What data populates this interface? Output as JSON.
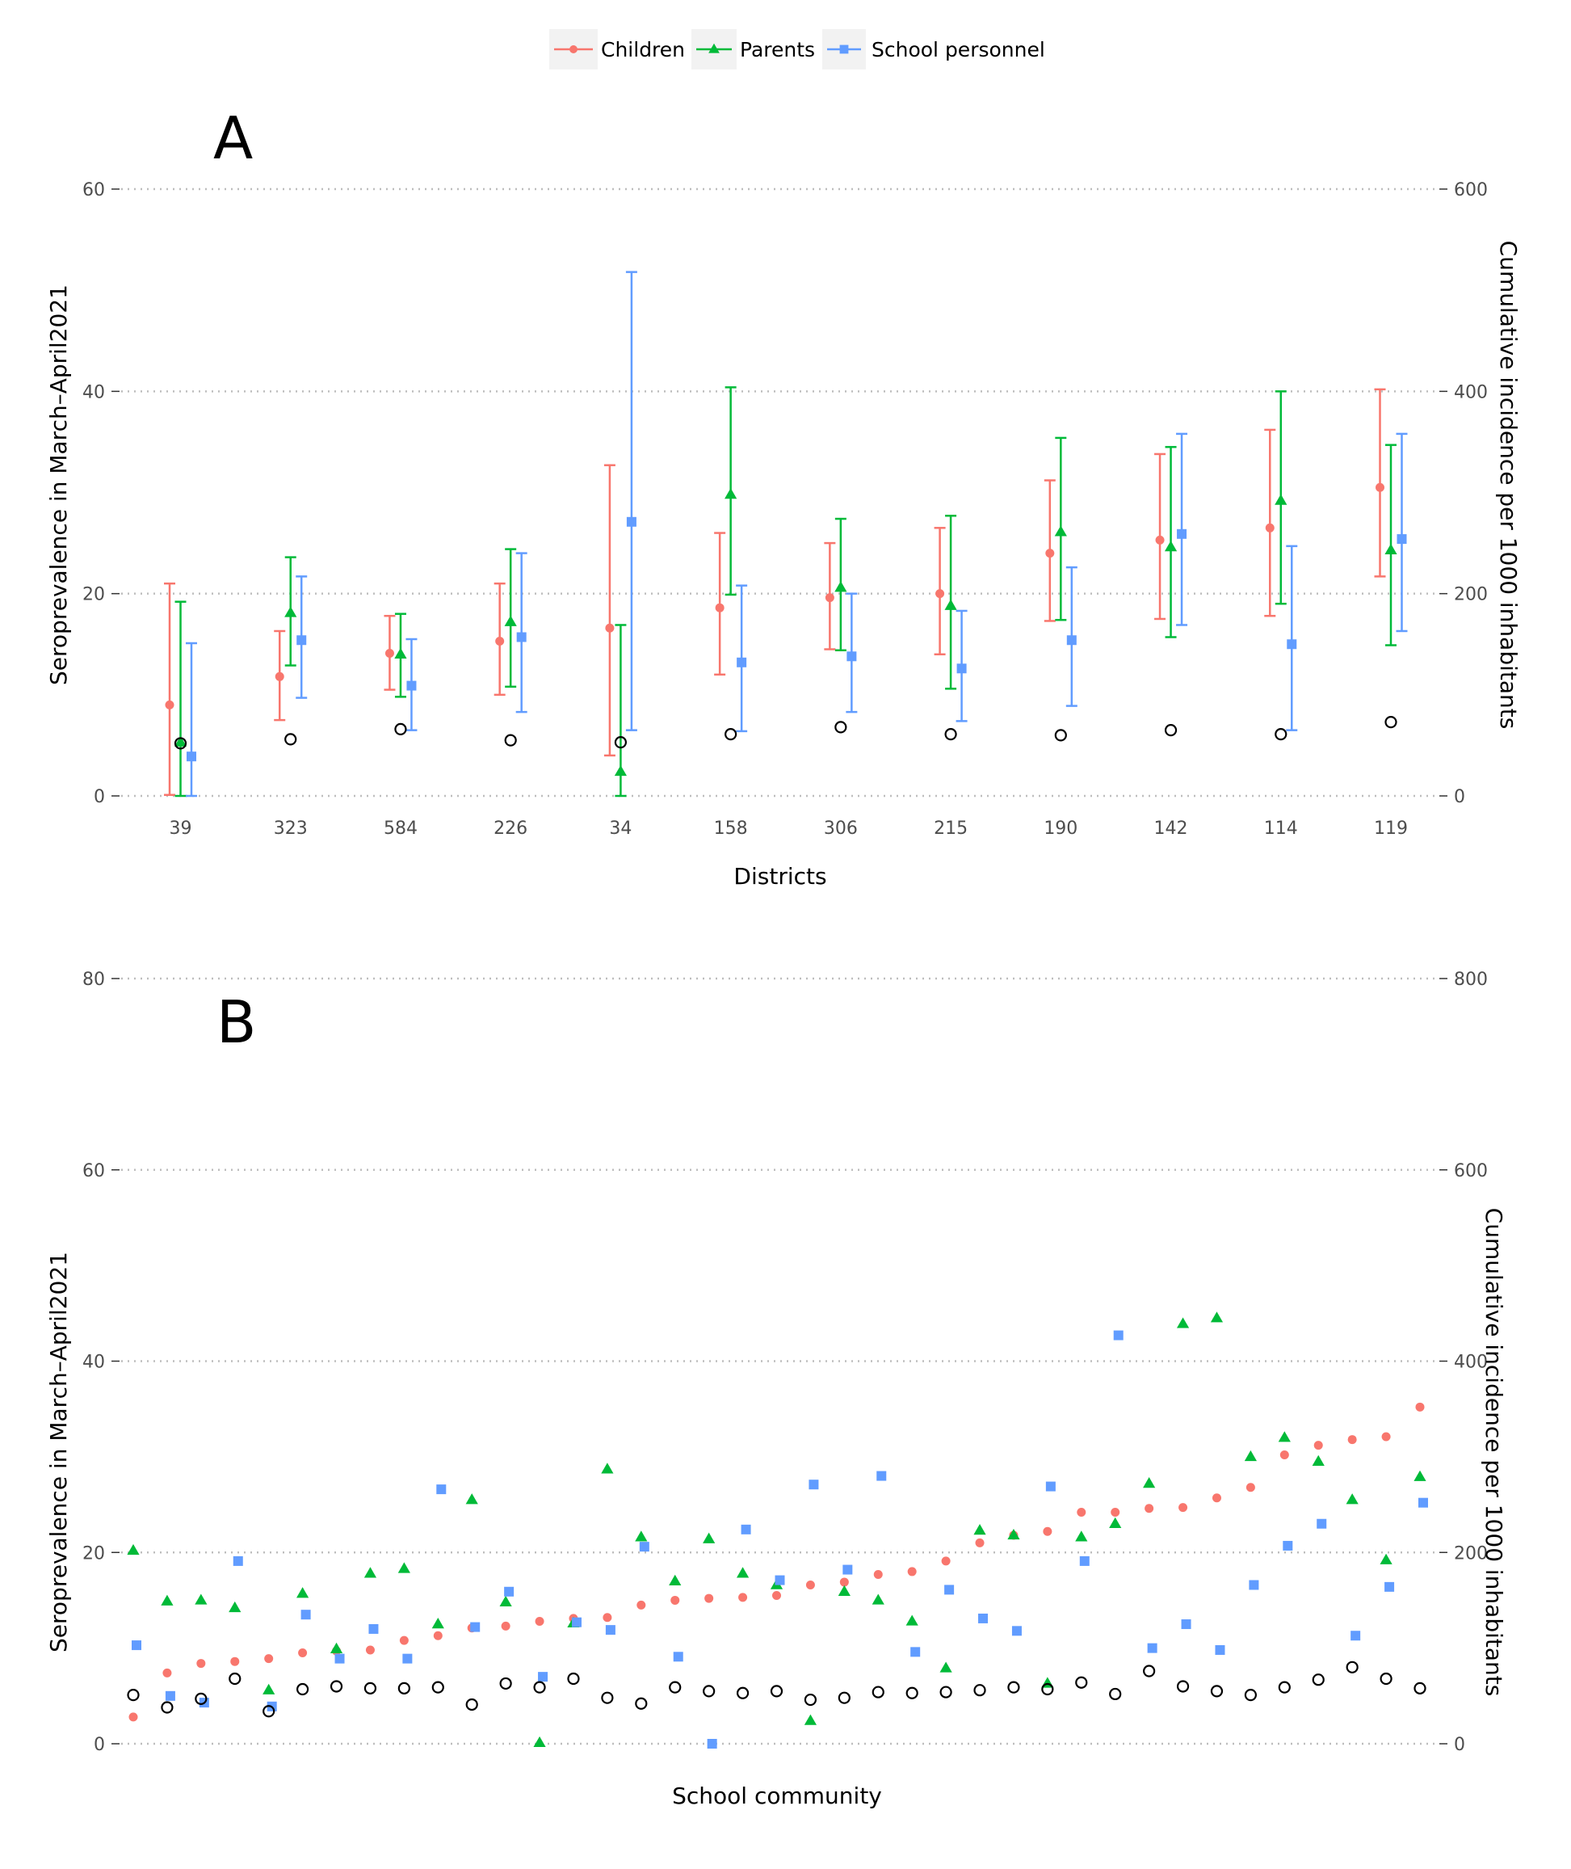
{
  "colors": {
    "children": "#F8766D",
    "parents": "#00BA38",
    "school_personnel": "#619CFF",
    "incidence": "#000000",
    "grid": "#bdbdbd",
    "legend_key_bg": "#f2f2f2"
  },
  "legend": {
    "items": [
      {
        "key": "children",
        "label": "Children",
        "shape": "circle"
      },
      {
        "key": "parents",
        "label": "Parents",
        "shape": "triangle"
      },
      {
        "key": "school_personnel",
        "label": "School personnel",
        "shape": "square"
      }
    ]
  },
  "chart_data": [
    {
      "panel": "A",
      "type": "scatter",
      "subtype": "point-with-errorbars",
      "xlabel": "Districts",
      "ylabel": "Seroprevalence  in March–April2021",
      "ylabel_right": "Cumulative incidence  per 1000 inhabitants",
      "ylim": [
        0,
        60
      ],
      "ylim_right": [
        0,
        600
      ],
      "yticks": [
        0,
        20,
        40,
        60
      ],
      "yticks_right": [
        0,
        200,
        400,
        600
      ],
      "grid": true,
      "categories": [
        "39",
        "323",
        "584",
        "226",
        "34",
        "158",
        "306",
        "215",
        "190",
        "142",
        "114",
        "119"
      ],
      "series": [
        {
          "key": "children",
          "name": "Children",
          "values": [
            9.0,
            11.8,
            14.1,
            15.3,
            16.6,
            18.6,
            19.6,
            20.0,
            24.0,
            25.3,
            26.5,
            30.5
          ],
          "lower": [
            0.1,
            7.5,
            10.5,
            10.0,
            4.0,
            12.0,
            14.5,
            14.0,
            17.3,
            17.5,
            17.8,
            21.7
          ],
          "upper": [
            21.0,
            16.3,
            17.8,
            21.0,
            32.7,
            26.0,
            25.0,
            26.5,
            31.2,
            33.8,
            36.2,
            40.2
          ]
        },
        {
          "key": "parents",
          "name": "Parents",
          "values": [
            5.3,
            18.1,
            14.0,
            17.2,
            2.4,
            29.8,
            20.6,
            18.8,
            26.1,
            24.6,
            29.2,
            24.3
          ],
          "lower": [
            0.0,
            12.9,
            9.8,
            10.8,
            0.0,
            19.9,
            14.4,
            10.6,
            17.4,
            15.7,
            19.0,
            14.9
          ],
          "upper": [
            19.2,
            23.6,
            18.0,
            24.4,
            16.9,
            40.4,
            27.4,
            27.7,
            35.4,
            34.5,
            40.0,
            34.7
          ]
        },
        {
          "key": "school_personnel",
          "name": "School personnel",
          "values": [
            3.9,
            15.4,
            10.9,
            15.7,
            27.1,
            13.2,
            13.8,
            12.6,
            15.4,
            25.9,
            15.0,
            25.4
          ],
          "lower": [
            0.0,
            9.7,
            6.5,
            8.3,
            6.5,
            6.4,
            8.3,
            7.4,
            8.9,
            16.9,
            6.5,
            16.3
          ],
          "upper": [
            15.1,
            21.7,
            15.5,
            24.0,
            51.8,
            20.8,
            20.0,
            18.3,
            22.6,
            35.8,
            24.7,
            35.8
          ]
        },
        {
          "key": "incidence",
          "name": "Cumulative incidence",
          "axis": "right",
          "values": [
            52,
            56,
            66,
            55,
            53,
            61,
            68,
            61,
            60,
            65,
            61,
            73
          ]
        }
      ]
    },
    {
      "panel": "B",
      "type": "scatter",
      "xlabel": "School community",
      "ylabel": "Seroprevalence  in March–April2021",
      "ylabel_right": "Cumulative incidence  per 1000 inhabitants",
      "ylim": [
        0,
        80
      ],
      "ylim_right": [
        0,
        800
      ],
      "yticks": [
        0,
        20,
        40,
        60,
        80
      ],
      "yticks_right": [
        0,
        200,
        400,
        600,
        800
      ],
      "grid": true,
      "series": [
        {
          "key": "children",
          "name": "Children",
          "values": [
            2.8,
            7.4,
            8.4,
            8.6,
            8.9,
            9.5,
            9.7,
            9.8,
            10.8,
            11.3,
            12.1,
            12.3,
            12.8,
            13.1,
            13.2,
            14.5,
            15.0,
            15.2,
            15.3,
            15.5,
            16.6,
            16.9,
            17.7,
            18.0,
            19.1,
            21.0,
            21.8,
            22.2,
            24.2,
            24.2,
            24.6,
            24.7,
            25.7,
            26.8,
            30.2,
            31.2,
            31.8,
            32.1,
            35.2
          ]
        },
        {
          "key": "parents",
          "name": "Parents",
          "values": [
            20.2,
            14.9,
            15.0,
            14.2,
            5.6,
            15.7,
            9.9,
            17.8,
            18.3,
            12.5,
            25.5,
            14.8,
            0.1,
            12.6,
            28.7,
            21.6,
            17.0,
            21.4,
            17.8,
            16.6,
            2.4,
            15.9,
            15.0,
            12.8,
            7.9,
            22.3,
            21.8,
            6.3,
            21.6,
            23.0,
            27.2,
            43.9,
            44.5,
            30.0,
            32.0,
            29.5,
            25.5,
            19.2,
            27.9
          ]
        },
        {
          "key": "school_personnel",
          "name": "School personnel",
          "values": [
            10.3,
            5.0,
            4.3,
            19.1,
            3.9,
            13.5,
            8.9,
            12.0,
            8.9,
            26.6,
            12.2,
            15.9,
            7.0,
            12.7,
            11.9,
            20.6,
            9.1,
            0.0,
            22.4,
            17.1,
            27.1,
            18.2,
            28.0,
            9.6,
            16.1,
            13.1,
            11.8,
            26.9,
            19.1,
            42.7,
            10.0,
            12.5,
            9.8,
            16.6,
            20.7,
            23.0,
            11.3,
            16.4,
            25.2
          ]
        },
        {
          "key": "incidence",
          "name": "Cumulative incidence",
          "axis": "right",
          "values": [
            51,
            38,
            47,
            68,
            34,
            57,
            60,
            58,
            58,
            59,
            41,
            63,
            59,
            68,
            48,
            42,
            59,
            55,
            53,
            55,
            46,
            48,
            54,
            53,
            54,
            56,
            59,
            57,
            64,
            52,
            76,
            60,
            55,
            51,
            59,
            67,
            80,
            68,
            58
          ]
        }
      ]
    }
  ],
  "panels": {
    "a": {
      "letter": "A"
    },
    "b": {
      "letter": "B"
    }
  }
}
